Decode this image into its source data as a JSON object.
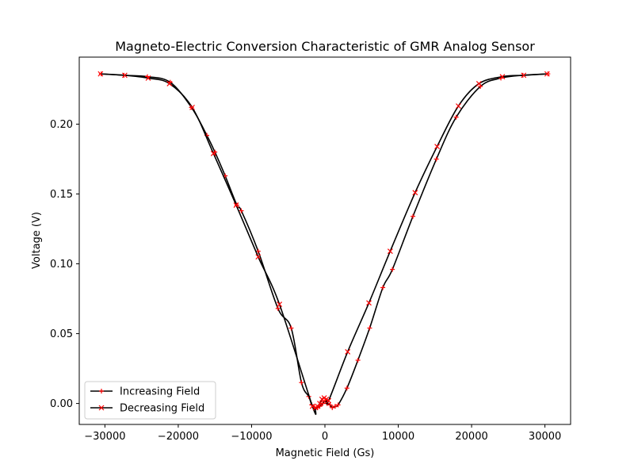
{
  "chart_data": {
    "type": "line",
    "title": "Magneto-Electric Conversion Characteristic of GMR Analog Sensor",
    "xlabel": "Magnetic Field (Gs)",
    "ylabel": "Voltage (V)",
    "xlim": [
      -33500,
      33500
    ],
    "ylim": [
      -0.015,
      0.248
    ],
    "xticks": [
      -30000,
      -20000,
      -10000,
      0,
      10000,
      20000,
      30000
    ],
    "yticks": [
      0.0,
      0.05,
      0.1,
      0.15,
      0.2
    ],
    "xtick_labels": [
      "−30000",
      "−20000",
      "−10000",
      "0",
      "10000",
      "20000",
      "30000"
    ],
    "ytick_labels": [
      "0.00",
      "0.05",
      "0.10",
      "0.15",
      "0.20"
    ],
    "line_color": "#000000",
    "marker_color": "#ff0000",
    "grid": false,
    "legend_position": "lower-left",
    "series": [
      {
        "name": "Increasing Field",
        "marker": "plus",
        "x": [
          -30500,
          -27400,
          -24200,
          -21100,
          -18200,
          -16100,
          -15000,
          -13600,
          -12000,
          -11400,
          -9100,
          -6400,
          -4600,
          -3200,
          -2200,
          -1800,
          -1400,
          -1000,
          -700,
          -300,
          0,
          300,
          700,
          1000,
          1400,
          1800,
          3000,
          4500,
          6100,
          7900,
          9200,
          12000,
          15200,
          17900,
          21200,
          24000,
          27000,
          30400
        ],
        "y": [
          0.236,
          0.235,
          0.234,
          0.23,
          0.212,
          0.192,
          0.18,
          0.163,
          0.142,
          0.138,
          0.109,
          0.068,
          0.054,
          0.015,
          0.005,
          -0.001,
          -0.003,
          -0.003,
          -0.002,
          0.0,
          0.002,
          0.0,
          -0.001,
          -0.003,
          -0.002,
          -0.001,
          0.011,
          0.031,
          0.054,
          0.083,
          0.096,
          0.134,
          0.175,
          0.205,
          0.227,
          0.233,
          0.235,
          0.236
        ]
      },
      {
        "name": "Decreasing Field",
        "marker": "x",
        "x": [
          30300,
          27100,
          24200,
          21000,
          18200,
          15300,
          12300,
          8900,
          6000,
          3100,
          500,
          200,
          -100,
          -400,
          -700,
          -1000,
          -1300,
          -1700,
          -6200,
          -9100,
          -12100,
          -15200,
          -18100,
          -21200,
          -24100,
          -27300,
          -30600
        ],
        "y": [
          0.236,
          0.235,
          0.234,
          0.229,
          0.213,
          0.184,
          0.151,
          0.109,
          0.072,
          0.037,
          0.002,
          0.003,
          0.004,
          0.003,
          0.0,
          -0.002,
          -0.003,
          -0.002,
          0.071,
          0.105,
          0.142,
          0.179,
          0.212,
          0.229,
          0.233,
          0.235,
          0.236
        ]
      }
    ]
  }
}
